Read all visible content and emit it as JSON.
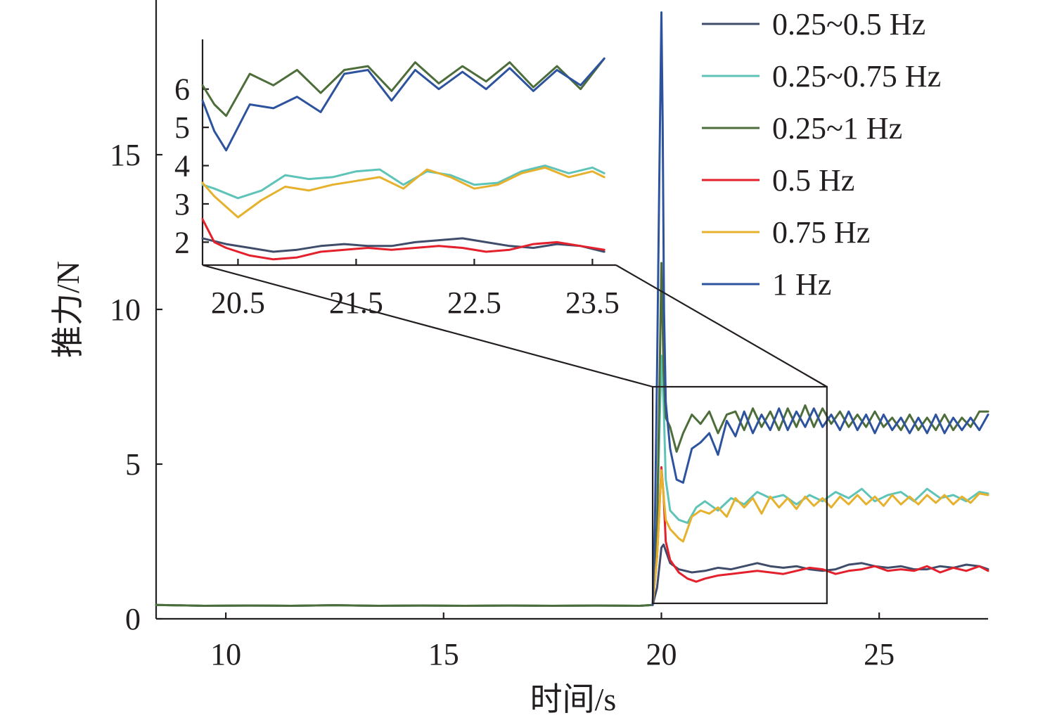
{
  "chart_data": {
    "type": "line",
    "xlabel": "时间/s",
    "ylabel": "推力/N",
    "xlim": [
      8.4,
      27.5
    ],
    "ylim": [
      0,
      20
    ],
    "x_ticks": [
      10,
      15,
      20,
      25
    ],
    "y_ticks": [
      0,
      5,
      10,
      15
    ],
    "x_tick_labels": [
      "10",
      "15",
      "20",
      "25"
    ],
    "y_tick_labels": [
      "0",
      "5",
      "10",
      "15"
    ],
    "grid": false,
    "legend_position": "top-right",
    "series": [
      {
        "name": "0.25~0.5 Hz",
        "color": "#3f4d6b",
        "x": [
          8.4,
          9.5,
          10.5,
          11.5,
          12.5,
          13.5,
          14.5,
          15.5,
          16.5,
          17.5,
          18.5,
          19.5,
          19.8,
          19.9,
          20.0,
          20.05,
          20.1,
          20.2,
          20.4,
          20.7,
          21.0,
          21.3,
          21.6,
          21.9,
          22.2,
          22.5,
          22.8,
          23.1,
          23.4,
          23.7,
          24.0,
          24.3,
          24.6,
          24.9,
          25.2,
          25.5,
          25.8,
          26.1,
          26.4,
          26.7,
          27.0,
          27.3,
          27.5
        ],
        "y": [
          0.45,
          0.42,
          0.43,
          0.42,
          0.44,
          0.42,
          0.43,
          0.42,
          0.43,
          0.42,
          0.43,
          0.42,
          0.45,
          1.0,
          2.3,
          2.4,
          2.2,
          1.8,
          1.6,
          1.5,
          1.55,
          1.65,
          1.6,
          1.7,
          1.8,
          1.7,
          1.65,
          1.7,
          1.6,
          1.55,
          1.6,
          1.75,
          1.8,
          1.7,
          1.65,
          1.7,
          1.6,
          1.6,
          1.7,
          1.65,
          1.75,
          1.7,
          1.6
        ]
      },
      {
        "name": "0.25~0.75 Hz",
        "color": "#5fc4b8",
        "x": [
          8.4,
          9.5,
          10.5,
          11.5,
          12.5,
          13.5,
          14.5,
          15.5,
          16.5,
          17.5,
          18.5,
          19.5,
          19.8,
          19.9,
          20.0,
          20.05,
          20.1,
          20.2,
          20.4,
          20.6,
          20.8,
          21.0,
          21.3,
          21.6,
          21.9,
          22.2,
          22.5,
          22.8,
          23.1,
          23.4,
          23.7,
          24.0,
          24.3,
          24.6,
          24.9,
          25.2,
          25.5,
          25.8,
          26.1,
          26.4,
          26.7,
          27.0,
          27.3,
          27.5
        ],
        "y": [
          0.45,
          0.42,
          0.43,
          0.42,
          0.44,
          0.42,
          0.43,
          0.42,
          0.43,
          0.42,
          0.43,
          0.42,
          0.45,
          3.0,
          8.5,
          7.0,
          4.5,
          3.5,
          3.2,
          3.1,
          3.6,
          3.8,
          3.5,
          3.9,
          3.7,
          4.1,
          3.9,
          4.0,
          3.7,
          4.0,
          3.8,
          4.1,
          3.9,
          4.2,
          3.8,
          4.0,
          4.1,
          3.8,
          4.2,
          3.9,
          4.0,
          3.8,
          4.1,
          4.05
        ]
      },
      {
        "name": "0.25~1 Hz",
        "color": "#4d6d3a",
        "x": [
          8.4,
          9.5,
          10.5,
          11.5,
          12.5,
          13.5,
          14.5,
          15.5,
          16.5,
          17.5,
          18.5,
          19.5,
          19.8,
          19.9,
          19.95,
          20.0,
          20.05,
          20.1,
          20.2,
          20.35,
          20.5,
          20.7,
          20.9,
          21.1,
          21.3,
          21.5,
          21.7,
          21.9,
          22.1,
          22.3,
          22.5,
          22.7,
          22.9,
          23.1,
          23.3,
          23.5,
          23.7,
          23.9,
          24.1,
          24.3,
          24.5,
          24.7,
          24.9,
          25.1,
          25.3,
          25.5,
          25.7,
          25.9,
          26.1,
          26.3,
          26.5,
          26.7,
          26.9,
          27.1,
          27.3,
          27.5
        ],
        "y": [
          0.45,
          0.42,
          0.43,
          0.42,
          0.44,
          0.42,
          0.43,
          0.42,
          0.43,
          0.42,
          0.43,
          0.42,
          0.45,
          3.0,
          7.0,
          11.5,
          8.0,
          6.5,
          6.2,
          5.4,
          6.0,
          6.6,
          6.3,
          6.7,
          6.0,
          6.6,
          6.7,
          6.1,
          6.8,
          6.2,
          6.7,
          6.1,
          6.8,
          6.2,
          6.9,
          6.2,
          6.8,
          6.3,
          6.7,
          6.2,
          6.6,
          6.2,
          6.7,
          6.2,
          6.5,
          6.1,
          6.6,
          6.1,
          6.5,
          6.1,
          6.6,
          6.1,
          6.5,
          6.2,
          6.7,
          6.7
        ]
      },
      {
        "name": "0.5 Hz",
        "color": "#e3202b",
        "x": [
          19.8,
          19.9,
          20.0,
          20.05,
          20.1,
          20.2,
          20.4,
          20.6,
          20.8,
          21.0,
          21.3,
          21.6,
          21.9,
          22.2,
          22.5,
          22.8,
          23.1,
          23.4,
          23.7,
          24.0,
          24.3,
          24.6,
          24.9,
          25.2,
          25.5,
          25.8,
          26.1,
          26.4,
          26.7,
          27.0,
          27.3,
          27.5
        ],
        "y": [
          0.45,
          2.0,
          4.9,
          4.0,
          2.5,
          1.9,
          1.5,
          1.3,
          1.2,
          1.3,
          1.4,
          1.45,
          1.5,
          1.55,
          1.5,
          1.45,
          1.55,
          1.65,
          1.6,
          1.45,
          1.55,
          1.6,
          1.7,
          1.55,
          1.6,
          1.55,
          1.7,
          1.5,
          1.65,
          1.55,
          1.7,
          1.55
        ]
      },
      {
        "name": "0.75 Hz",
        "color": "#e6b12d",
        "x": [
          19.8,
          19.9,
          20.0,
          20.05,
          20.1,
          20.2,
          20.4,
          20.5,
          20.7,
          20.9,
          21.1,
          21.3,
          21.5,
          21.7,
          21.9,
          22.1,
          22.3,
          22.5,
          22.7,
          22.9,
          23.1,
          23.3,
          23.5,
          23.7,
          23.9,
          24.1,
          24.3,
          24.5,
          24.7,
          24.9,
          25.1,
          25.3,
          25.5,
          25.7,
          25.9,
          26.1,
          26.3,
          26.5,
          26.7,
          26.9,
          27.1,
          27.3,
          27.5
        ],
        "y": [
          0.45,
          2.0,
          4.8,
          4.0,
          3.2,
          2.9,
          2.6,
          2.5,
          3.3,
          3.5,
          3.4,
          3.6,
          3.3,
          3.9,
          3.6,
          3.9,
          3.4,
          3.95,
          3.6,
          3.9,
          3.55,
          3.95,
          3.65,
          3.9,
          3.6,
          3.95,
          3.7,
          4.0,
          3.7,
          3.95,
          3.65,
          4.0,
          3.7,
          3.95,
          3.7,
          4.0,
          3.75,
          4.0,
          3.7,
          3.95,
          3.75,
          4.05,
          4.0
        ]
      },
      {
        "name": "1 Hz",
        "color": "#2e539e",
        "x": [
          19.8,
          19.85,
          19.9,
          19.95,
          20.0,
          20.03,
          20.06,
          20.1,
          20.2,
          20.35,
          20.5,
          20.7,
          20.9,
          21.1,
          21.3,
          21.5,
          21.7,
          21.9,
          22.1,
          22.3,
          22.5,
          22.7,
          22.9,
          23.1,
          23.3,
          23.5,
          23.7,
          23.9,
          24.1,
          24.3,
          24.5,
          24.7,
          24.9,
          25.1,
          25.3,
          25.5,
          25.7,
          25.9,
          26.1,
          26.3,
          26.5,
          26.7,
          26.9,
          27.1,
          27.3,
          27.5
        ],
        "y": [
          0.45,
          3.0,
          8.0,
          14.0,
          19.6,
          16.0,
          10.0,
          7.0,
          5.5,
          4.5,
          4.4,
          5.5,
          5.7,
          6.0,
          5.3,
          6.4,
          5.9,
          6.7,
          6.0,
          6.6,
          6.1,
          6.8,
          6.1,
          6.7,
          6.2,
          6.8,
          6.2,
          6.6,
          6.1,
          6.7,
          6.1,
          6.6,
          6.0,
          6.6,
          6.1,
          6.5,
          6.0,
          6.5,
          6.0,
          6.6,
          6.0,
          6.5,
          6.1,
          6.5,
          6.1,
          6.6
        ]
      }
    ],
    "inset": {
      "source_xlim": [
        19.8,
        23.8
      ],
      "source_ylim": [
        0.5,
        7.5
      ],
      "xlim": [
        20.2,
        23.7
      ],
      "ylim": [
        1.4,
        7.3
      ],
      "x_ticks": [
        20.5,
        21.5,
        22.5,
        23.5
      ],
      "y_ticks": [
        2,
        3,
        4,
        5,
        6
      ],
      "x_tick_labels": [
        "20.5",
        "21.5",
        "22.5",
        "23.5"
      ],
      "y_tick_labels": [
        "2",
        "3",
        "4",
        "5",
        "6"
      ],
      "series": [
        {
          "name": "0.25~0.5 Hz",
          "color": "#3f4d6b",
          "x": [
            20.2,
            20.4,
            20.6,
            20.8,
            21.0,
            21.2,
            21.4,
            21.6,
            21.8,
            22.0,
            22.2,
            22.4,
            22.6,
            22.8,
            23.0,
            23.2,
            23.4,
            23.6
          ],
          "y": [
            2.1,
            1.95,
            1.85,
            1.75,
            1.8,
            1.9,
            1.95,
            1.9,
            1.9,
            2.0,
            2.05,
            2.1,
            2.0,
            1.9,
            1.85,
            1.95,
            1.9,
            1.75
          ]
        },
        {
          "name": "0.25~0.75 Hz",
          "color": "#5fc4b8",
          "x": [
            20.2,
            20.3,
            20.5,
            20.7,
            20.9,
            21.1,
            21.3,
            21.5,
            21.7,
            21.9,
            22.1,
            22.3,
            22.5,
            22.7,
            22.9,
            23.1,
            23.3,
            23.5,
            23.6
          ],
          "y": [
            3.5,
            3.4,
            3.15,
            3.35,
            3.75,
            3.65,
            3.7,
            3.85,
            3.9,
            3.5,
            3.85,
            3.75,
            3.5,
            3.55,
            3.85,
            4.0,
            3.8,
            3.95,
            3.8
          ]
        },
        {
          "name": "0.25~1 Hz",
          "color": "#4d6d3a",
          "x": [
            20.2,
            20.3,
            20.4,
            20.6,
            20.8,
            21.0,
            21.2,
            21.4,
            21.6,
            21.8,
            22.0,
            22.2,
            22.4,
            22.6,
            22.8,
            23.0,
            23.2,
            23.4,
            23.6
          ],
          "y": [
            6.1,
            5.6,
            5.3,
            6.4,
            6.1,
            6.5,
            5.9,
            6.5,
            6.6,
            5.95,
            6.7,
            6.15,
            6.6,
            6.2,
            6.7,
            6.05,
            6.6,
            6.0,
            6.8
          ]
        },
        {
          "name": "0.5 Hz",
          "color": "#e3202b",
          "x": [
            20.2,
            20.3,
            20.4,
            20.6,
            20.8,
            21.0,
            21.2,
            21.4,
            21.6,
            21.8,
            22.0,
            22.2,
            22.4,
            22.6,
            22.8,
            23.0,
            23.2,
            23.4,
            23.6
          ],
          "y": [
            2.6,
            2.0,
            1.85,
            1.65,
            1.55,
            1.6,
            1.75,
            1.8,
            1.85,
            1.8,
            1.85,
            1.9,
            1.85,
            1.75,
            1.8,
            1.95,
            2.0,
            1.9,
            1.8
          ]
        },
        {
          "name": "0.75 Hz",
          "color": "#e6b12d",
          "x": [
            20.2,
            20.3,
            20.5,
            20.7,
            20.9,
            21.1,
            21.3,
            21.5,
            21.7,
            21.9,
            22.1,
            22.3,
            22.5,
            22.7,
            22.9,
            23.1,
            23.3,
            23.5,
            23.6
          ],
          "y": [
            3.55,
            3.2,
            2.65,
            3.1,
            3.45,
            3.35,
            3.5,
            3.6,
            3.7,
            3.4,
            3.9,
            3.7,
            3.4,
            3.5,
            3.8,
            3.95,
            3.7,
            3.85,
            3.7
          ]
        },
        {
          "name": "1 Hz",
          "color": "#2e539e",
          "x": [
            20.2,
            20.3,
            20.4,
            20.6,
            20.8,
            21.0,
            21.2,
            21.4,
            21.6,
            21.8,
            22.0,
            22.2,
            22.4,
            22.6,
            22.8,
            23.0,
            23.2,
            23.4,
            23.6
          ],
          "y": [
            5.7,
            4.9,
            4.4,
            5.6,
            5.5,
            5.8,
            5.4,
            6.4,
            6.5,
            5.7,
            6.5,
            6.0,
            6.45,
            6.0,
            6.55,
            5.95,
            6.5,
            6.1,
            6.8
          ]
        }
      ]
    }
  }
}
